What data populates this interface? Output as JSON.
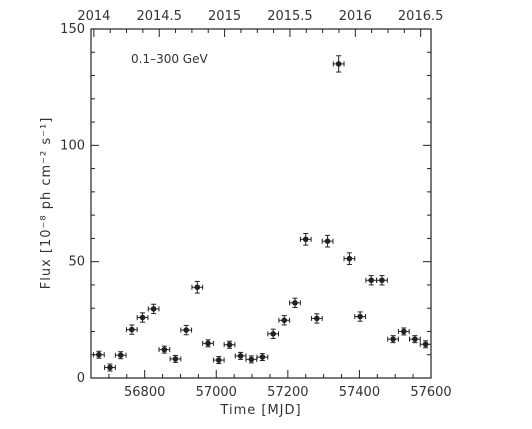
{
  "chart_data": {
    "type": "scatter",
    "title": "",
    "annotation": "0.1–300 GeV",
    "xlabel": "Time [MJD]",
    "ylabel": "Flux [10⁻⁸ ph cm⁻² s⁻¹]",
    "xlim": [
      56650,
      57600
    ],
    "ylim": [
      0,
      150
    ],
    "grid": false,
    "legend": "none",
    "x_ticks": [
      56800,
      57000,
      57200,
      57400,
      57600
    ],
    "x_tick_labels": [
      "56800",
      "57000",
      "57200",
      "57400",
      "57600"
    ],
    "y_ticks": [
      0,
      50,
      100,
      150
    ],
    "y_tick_labels": [
      "0",
      "50",
      "100",
      "150"
    ],
    "top_ticks": [
      2014,
      2014.5,
      2015,
      2015.5,
      2016,
      2016.5
    ],
    "top_tick_labels": [
      "2014",
      "2014.5",
      "2015",
      "2015.5",
      "2016",
      "2016.5"
    ],
    "top_axis_origin": {
      "mjd": 56658,
      "year": 2014
    },
    "x_error_halfwidth": 15,
    "series": [
      {
        "marker_color": "#222222",
        "points": [
          {
            "x": 56672,
            "y": 10.0,
            "yerr": 1.5
          },
          {
            "x": 56703,
            "y": 4.5,
            "yerr": 1.5
          },
          {
            "x": 56733,
            "y": 9.8,
            "yerr": 1.5
          },
          {
            "x": 56764,
            "y": 20.8,
            "yerr": 2.0
          },
          {
            "x": 56794,
            "y": 26.0,
            "yerr": 2.0
          },
          {
            "x": 56825,
            "y": 29.7,
            "yerr": 2.0
          },
          {
            "x": 56855,
            "y": 12.2,
            "yerr": 1.5
          },
          {
            "x": 56886,
            "y": 8.2,
            "yerr": 1.5
          },
          {
            "x": 56916,
            "y": 20.6,
            "yerr": 2.0
          },
          {
            "x": 56947,
            "y": 39.0,
            "yerr": 2.5
          },
          {
            "x": 56977,
            "y": 14.9,
            "yerr": 1.5
          },
          {
            "x": 57007,
            "y": 7.7,
            "yerr": 1.5
          },
          {
            "x": 57037,
            "y": 14.3,
            "yerr": 1.5
          },
          {
            "x": 57068,
            "y": 9.5,
            "yerr": 1.5
          },
          {
            "x": 57098,
            "y": 8.0,
            "yerr": 1.5
          },
          {
            "x": 57129,
            "y": 9.0,
            "yerr": 1.5
          },
          {
            "x": 57159,
            "y": 19.0,
            "yerr": 2.0
          },
          {
            "x": 57190,
            "y": 24.8,
            "yerr": 2.0
          },
          {
            "x": 57220,
            "y": 32.3,
            "yerr": 2.0
          },
          {
            "x": 57250,
            "y": 59.6,
            "yerr": 2.5
          },
          {
            "x": 57281,
            "y": 25.6,
            "yerr": 2.0
          },
          {
            "x": 57311,
            "y": 58.8,
            "yerr": 2.5
          },
          {
            "x": 57342,
            "y": 135.0,
            "yerr": 3.5
          },
          {
            "x": 57372,
            "y": 51.3,
            "yerr": 2.5
          },
          {
            "x": 57402,
            "y": 26.4,
            "yerr": 2.0
          },
          {
            "x": 57433,
            "y": 42.0,
            "yerr": 2.0
          },
          {
            "x": 57463,
            "y": 42.0,
            "yerr": 2.0
          },
          {
            "x": 57494,
            "y": 16.7,
            "yerr": 1.5
          },
          {
            "x": 57524,
            "y": 20.0,
            "yerr": 1.5
          },
          {
            "x": 57555,
            "y": 16.7,
            "yerr": 1.5
          },
          {
            "x": 57585,
            "y": 14.5,
            "yerr": 1.5
          }
        ]
      }
    ]
  }
}
